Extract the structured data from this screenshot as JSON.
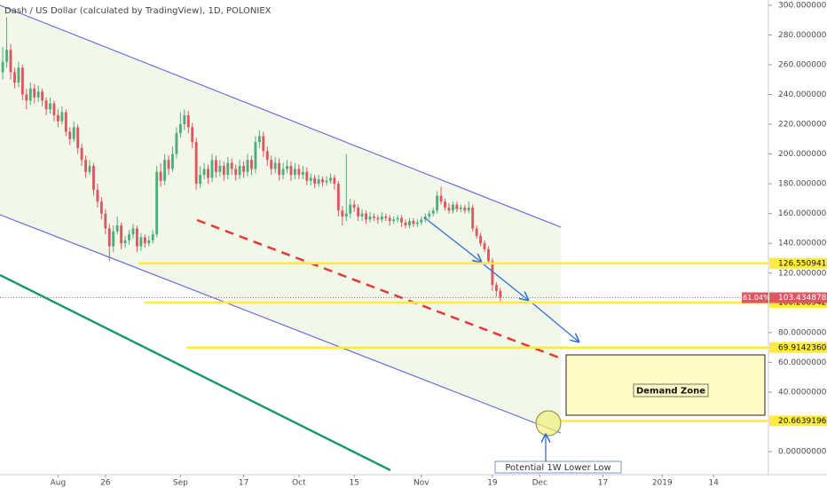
{
  "chart_data": {
    "type": "candlestick",
    "title": "Dash / US Dollar (calculated by TradingView), 1D, POLONIEX",
    "up_color": "#4caf7a",
    "down_color": "#e0555f",
    "categories": [
      null,
      null,
      null,
      null,
      null,
      null,
      null,
      null,
      null,
      null,
      null,
      null,
      null,
      null,
      null,
      null,
      null,
      null,
      null,
      null,
      null,
      null,
      null,
      null,
      null,
      null,
      null,
      null,
      null,
      null,
      null,
      null,
      null,
      null,
      null,
      null,
      null,
      null,
      null,
      null,
      null,
      null,
      null,
      null,
      null,
      null,
      null,
      null,
      null,
      null,
      null,
      null,
      null,
      null,
      null,
      null,
      null,
      null,
      null,
      null,
      null,
      null,
      null,
      null,
      null,
      null,
      null,
      null,
      null,
      null,
      null,
      null,
      null,
      null,
      null,
      null,
      null,
      null,
      null,
      null,
      null,
      null,
      null,
      null,
      null,
      null,
      null,
      null,
      null,
      null,
      null,
      null,
      null,
      null,
      null,
      null,
      null,
      null,
      null,
      null,
      null,
      null,
      null,
      null,
      null,
      null,
      null,
      null,
      null,
      null,
      null,
      null,
      null,
      null,
      null,
      null,
      null,
      null,
      null,
      null,
      null,
      null,
      null,
      null,
      null,
      null,
      null
    ],
    "candles": [
      [
        255,
        272,
        250,
        262
      ],
      [
        262,
        292,
        258,
        270
      ],
      [
        270,
        274,
        250,
        255
      ],
      [
        255,
        258,
        244,
        248
      ],
      [
        248,
        262,
        245,
        258
      ],
      [
        258,
        260,
        236,
        240
      ],
      [
        240,
        244,
        230,
        236
      ],
      [
        236,
        248,
        233,
        244
      ],
      [
        244,
        247,
        234,
        238
      ],
      [
        238,
        246,
        235,
        242
      ],
      [
        242,
        244,
        232,
        236
      ],
      [
        236,
        238,
        226,
        230
      ],
      [
        230,
        238,
        227,
        234
      ],
      [
        234,
        236,
        222,
        226
      ],
      [
        226,
        230,
        218,
        222
      ],
      [
        222,
        232,
        220,
        228
      ],
      [
        228,
        230,
        212,
        215
      ],
      [
        215,
        218,
        206,
        210
      ],
      [
        210,
        222,
        208,
        218
      ],
      [
        218,
        220,
        200,
        204
      ],
      [
        204,
        207,
        192,
        196
      ],
      [
        196,
        199,
        184,
        188
      ],
      [
        188,
        196,
        186,
        192
      ],
      [
        192,
        194,
        172,
        176
      ],
      [
        176,
        180,
        164,
        168
      ],
      [
        168,
        171,
        156,
        160
      ],
      [
        160,
        163,
        146,
        150
      ],
      [
        150,
        153,
        128,
        138
      ],
      [
        138,
        152,
        134,
        148
      ],
      [
        148,
        158,
        146,
        152
      ],
      [
        152,
        154,
        136,
        140
      ],
      [
        140,
        145,
        137,
        142
      ],
      [
        142,
        149,
        139,
        146
      ],
      [
        146,
        153,
        143,
        150
      ],
      [
        150,
        152,
        134,
        138
      ],
      [
        138,
        147,
        135,
        144
      ],
      [
        144,
        146,
        137,
        140
      ],
      [
        140,
        145,
        138,
        142
      ],
      [
        142,
        149,
        140,
        146
      ],
      [
        146,
        192,
        144,
        188
      ],
      [
        188,
        194,
        178,
        182
      ],
      [
        182,
        200,
        179,
        196
      ],
      [
        196,
        199,
        186,
        190
      ],
      [
        190,
        205,
        188,
        200
      ],
      [
        200,
        218,
        197,
        214
      ],
      [
        214,
        228,
        211,
        220
      ],
      [
        220,
        230,
        216,
        226
      ],
      [
        226,
        229,
        214,
        218
      ],
      [
        218,
        221,
        204,
        208
      ],
      [
        208,
        211,
        176,
        180
      ],
      [
        180,
        192,
        177,
        186
      ],
      [
        186,
        194,
        183,
        190
      ],
      [
        190,
        193,
        180,
        184
      ],
      [
        184,
        200,
        181,
        196
      ],
      [
        196,
        199,
        184,
        188
      ],
      [
        188,
        196,
        185,
        192
      ],
      [
        192,
        195,
        182,
        186
      ],
      [
        186,
        198,
        183,
        194
      ],
      [
        194,
        197,
        186,
        190
      ],
      [
        190,
        193,
        182,
        186
      ],
      [
        186,
        196,
        183,
        192
      ],
      [
        192,
        195,
        184,
        188
      ],
      [
        188,
        200,
        185,
        196
      ],
      [
        196,
        199,
        186,
        190
      ],
      [
        190,
        212,
        187,
        208
      ],
      [
        208,
        216,
        204,
        212
      ],
      [
        212,
        215,
        198,
        202
      ],
      [
        202,
        205,
        192,
        196
      ],
      [
        196,
        199,
        186,
        190
      ],
      [
        190,
        198,
        187,
        194
      ],
      [
        194,
        197,
        182,
        186
      ],
      [
        186,
        194,
        183,
        190
      ],
      [
        190,
        196,
        187,
        192
      ],
      [
        192,
        195,
        182,
        186
      ],
      [
        186,
        194,
        183,
        190
      ],
      [
        190,
        193,
        183,
        186
      ],
      [
        186,
        192,
        183,
        188
      ],
      [
        188,
        191,
        179,
        182
      ],
      [
        182,
        187,
        179,
        184
      ],
      [
        184,
        186,
        177,
        180
      ],
      [
        180,
        186,
        178,
        183
      ],
      [
        183,
        185,
        178,
        181
      ],
      [
        181,
        185,
        179,
        182
      ],
      [
        182,
        187,
        180,
        184
      ],
      [
        184,
        186,
        176,
        180
      ],
      [
        180,
        182,
        158,
        162
      ],
      [
        162,
        165,
        152,
        158
      ],
      [
        158,
        200,
        155,
        160
      ],
      [
        160,
        170,
        157,
        166
      ],
      [
        166,
        169,
        161,
        164
      ],
      [
        164,
        166,
        155,
        158
      ],
      [
        158,
        163,
        155,
        160
      ],
      [
        160,
        162,
        153,
        156
      ],
      [
        156,
        161,
        154,
        158
      ],
      [
        158,
        160,
        155,
        157
      ],
      [
        157,
        159,
        153,
        156
      ],
      [
        156,
        161,
        154,
        158
      ],
      [
        158,
        160,
        155,
        157
      ],
      [
        157,
        159,
        152,
        155
      ],
      [
        155,
        158,
        153,
        156
      ],
      [
        156,
        159,
        154,
        157
      ],
      [
        157,
        159,
        151,
        154
      ],
      [
        154,
        156,
        150,
        152
      ],
      [
        152,
        157,
        150,
        155
      ],
      [
        155,
        157,
        151,
        153
      ],
      [
        153,
        156,
        151,
        154
      ],
      [
        154,
        158,
        152,
        156
      ],
      [
        156,
        160,
        154,
        158
      ],
      [
        158,
        162,
        156,
        160
      ],
      [
        160,
        164,
        158,
        162
      ],
      [
        162,
        175,
        160,
        172
      ],
      [
        172,
        178,
        166,
        168
      ],
      [
        168,
        170,
        162,
        164
      ],
      [
        164,
        167,
        160,
        162
      ],
      [
        162,
        168,
        160,
        166
      ],
      [
        166,
        168,
        161,
        163
      ],
      [
        163,
        166,
        161,
        164
      ],
      [
        164,
        166,
        160,
        162
      ],
      [
        162,
        168,
        160,
        164
      ],
      [
        164,
        166,
        148,
        150
      ],
      [
        150,
        152,
        143,
        145
      ],
      [
        145,
        147,
        138,
        140
      ],
      [
        140,
        142,
        134,
        136
      ],
      [
        136,
        138,
        126,
        128
      ],
      [
        128,
        130,
        108,
        112
      ],
      [
        112,
        114,
        104,
        108
      ],
      [
        108,
        110,
        101,
        103.43487866
      ]
    ],
    "xlim": [
      -0.7,
      193.9
    ],
    "xticks": [
      {
        "value": 14,
        "label": "Aug"
      },
      26,
      {
        "value": 45,
        "label": "Sep"
      },
      {
        "value": 61,
        "label": "17"
      },
      {
        "value": 75,
        "label": "Oct"
      },
      {
        "value": 89,
        "label": "15"
      },
      {
        "value": 106,
        "label": "Nov"
      },
      {
        "value": 124,
        "label": "19"
      },
      {
        "value": 136,
        "label": "Dec"
      },
      {
        "value": 152,
        "label": "17"
      },
      {
        "value": 167,
        "label": "2019"
      },
      {
        "value": 180,
        "label": "14"
      }
    ],
    "ylim": [
      -15.5,
      303.5
    ],
    "yticks": [
      {
        "value": 300,
        "label": "300.00000000"
      },
      {
        "value": 280,
        "label": "280.00000000"
      },
      {
        "value": 260,
        "label": "260.00000000"
      },
      {
        "value": 240,
        "label": "240.00000000"
      },
      {
        "value": 220,
        "label": "220.00000000"
      },
      {
        "value": 200,
        "label": "200.00000000"
      },
      {
        "value": 180,
        "label": "180.00000000"
      },
      {
        "value": 160,
        "label": "160.00000000"
      },
      {
        "value": 140,
        "label": "140.00000000"
      },
      {
        "value": 120,
        "label": "120.00000000"
      },
      {
        "value": 80,
        "label": "80.00000000"
      },
      {
        "value": 60,
        "label": "60.00000000"
      },
      {
        "value": 40,
        "label": "40.00000000"
      },
      {
        "value": 0,
        "label": "0.00000000"
      }
    ],
    "levels": [
      126.55094103,
      100.20894221,
      69.91423606,
      20.66391969
    ],
    "level_color": "#ffeb3b",
    "last_price": 103.43487866,
    "change": {
      "value": -61.04,
      "label": "-61.04%"
    },
    "demand_zone_label": "Demand Zone",
    "note": "Potential 1W Lower Low"
  }
}
